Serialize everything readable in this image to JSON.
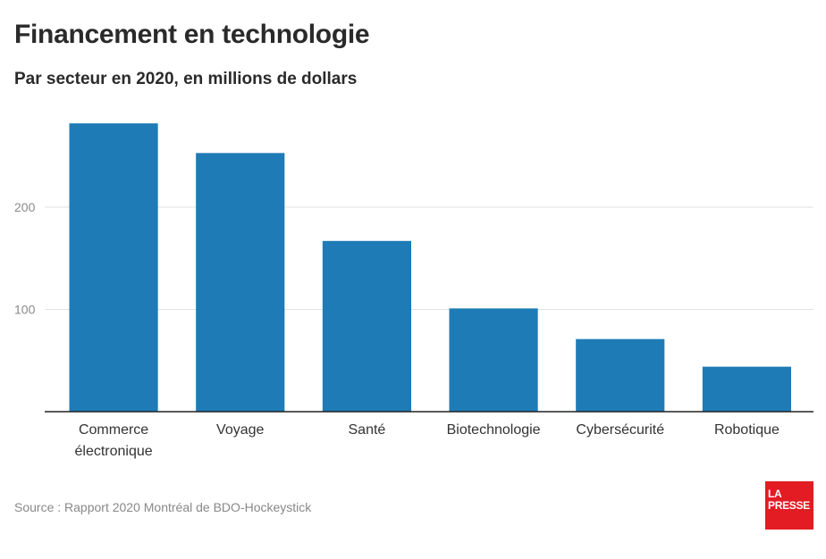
{
  "title": "Financement en technologie",
  "subtitle": "Par secteur en 2020, en millions de dollars",
  "source": "Source : Rapport 2020 Montréal de BDO-Hockeystick",
  "logo": {
    "line1": "LA",
    "line2": "PRESSE",
    "color": "#e31b23"
  },
  "chart_data": {
    "type": "bar",
    "categories": [
      [
        "Commerce",
        "électronique"
      ],
      [
        "Voyage"
      ],
      [
        "Santé"
      ],
      [
        "Biotechnologie"
      ],
      [
        "Cybersécurité"
      ],
      [
        "Robotique"
      ]
    ],
    "values": [
      282,
      253,
      167,
      101,
      71,
      44
    ],
    "yticks": [
      100,
      200
    ],
    "ylim": [
      0,
      290
    ],
    "grid": true,
    "bar_color": "#1f7bb6",
    "grid_color": "#e2e2e2",
    "tick_color": "#8a8a8a",
    "label_color": "#333333"
  }
}
